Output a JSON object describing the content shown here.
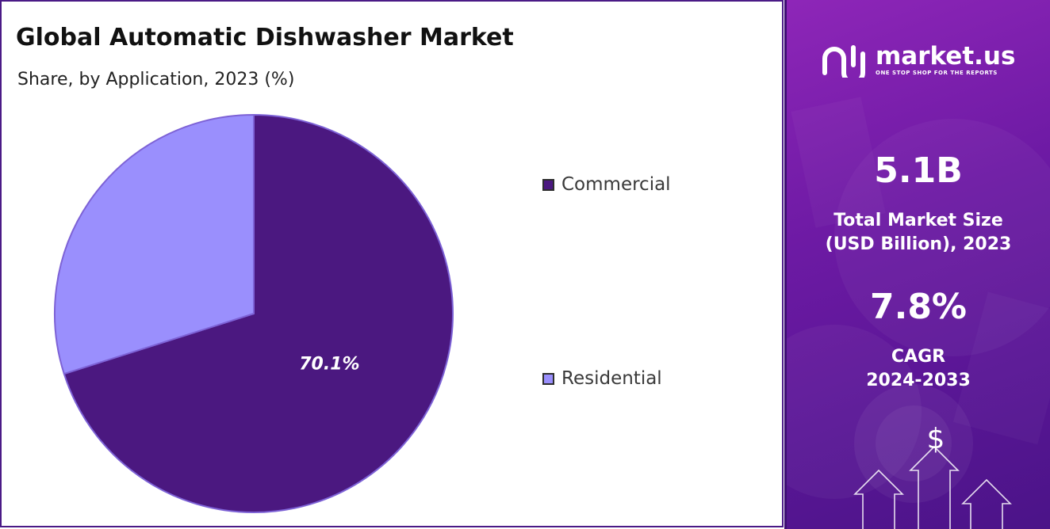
{
  "chart_data": {
    "type": "pie",
    "title": "Global Automatic Dishwasher Market",
    "subtitle": "Share, by Application, 2023 (%)",
    "slices": [
      {
        "label": "Commercial",
        "value": 70.1,
        "color": "#4b1880",
        "data_label": "70.1%"
      },
      {
        "label": "Residential",
        "value": 29.9,
        "color": "#9a8ffd",
        "data_label": ""
      }
    ],
    "legend_position": "right",
    "start_angle_deg": 0
  },
  "sidebar": {
    "logo": {
      "name": "market.us",
      "tagline": "ONE STOP SHOP FOR THE REPORTS",
      "icon": "market-us-logo-icon"
    },
    "market_size": {
      "value": "5.1B",
      "label_line1": "Total Market Size",
      "label_line2": "(USD Billion), 2023"
    },
    "cagr": {
      "value": "7.8%",
      "label_line1": "CAGR",
      "label_line2": "2024-2033"
    },
    "decoration": {
      "icon": "dollar-growth-arrows-icon",
      "symbol": "$"
    },
    "colors": {
      "background": "#6d1aa4",
      "text": "#ffffff"
    }
  }
}
